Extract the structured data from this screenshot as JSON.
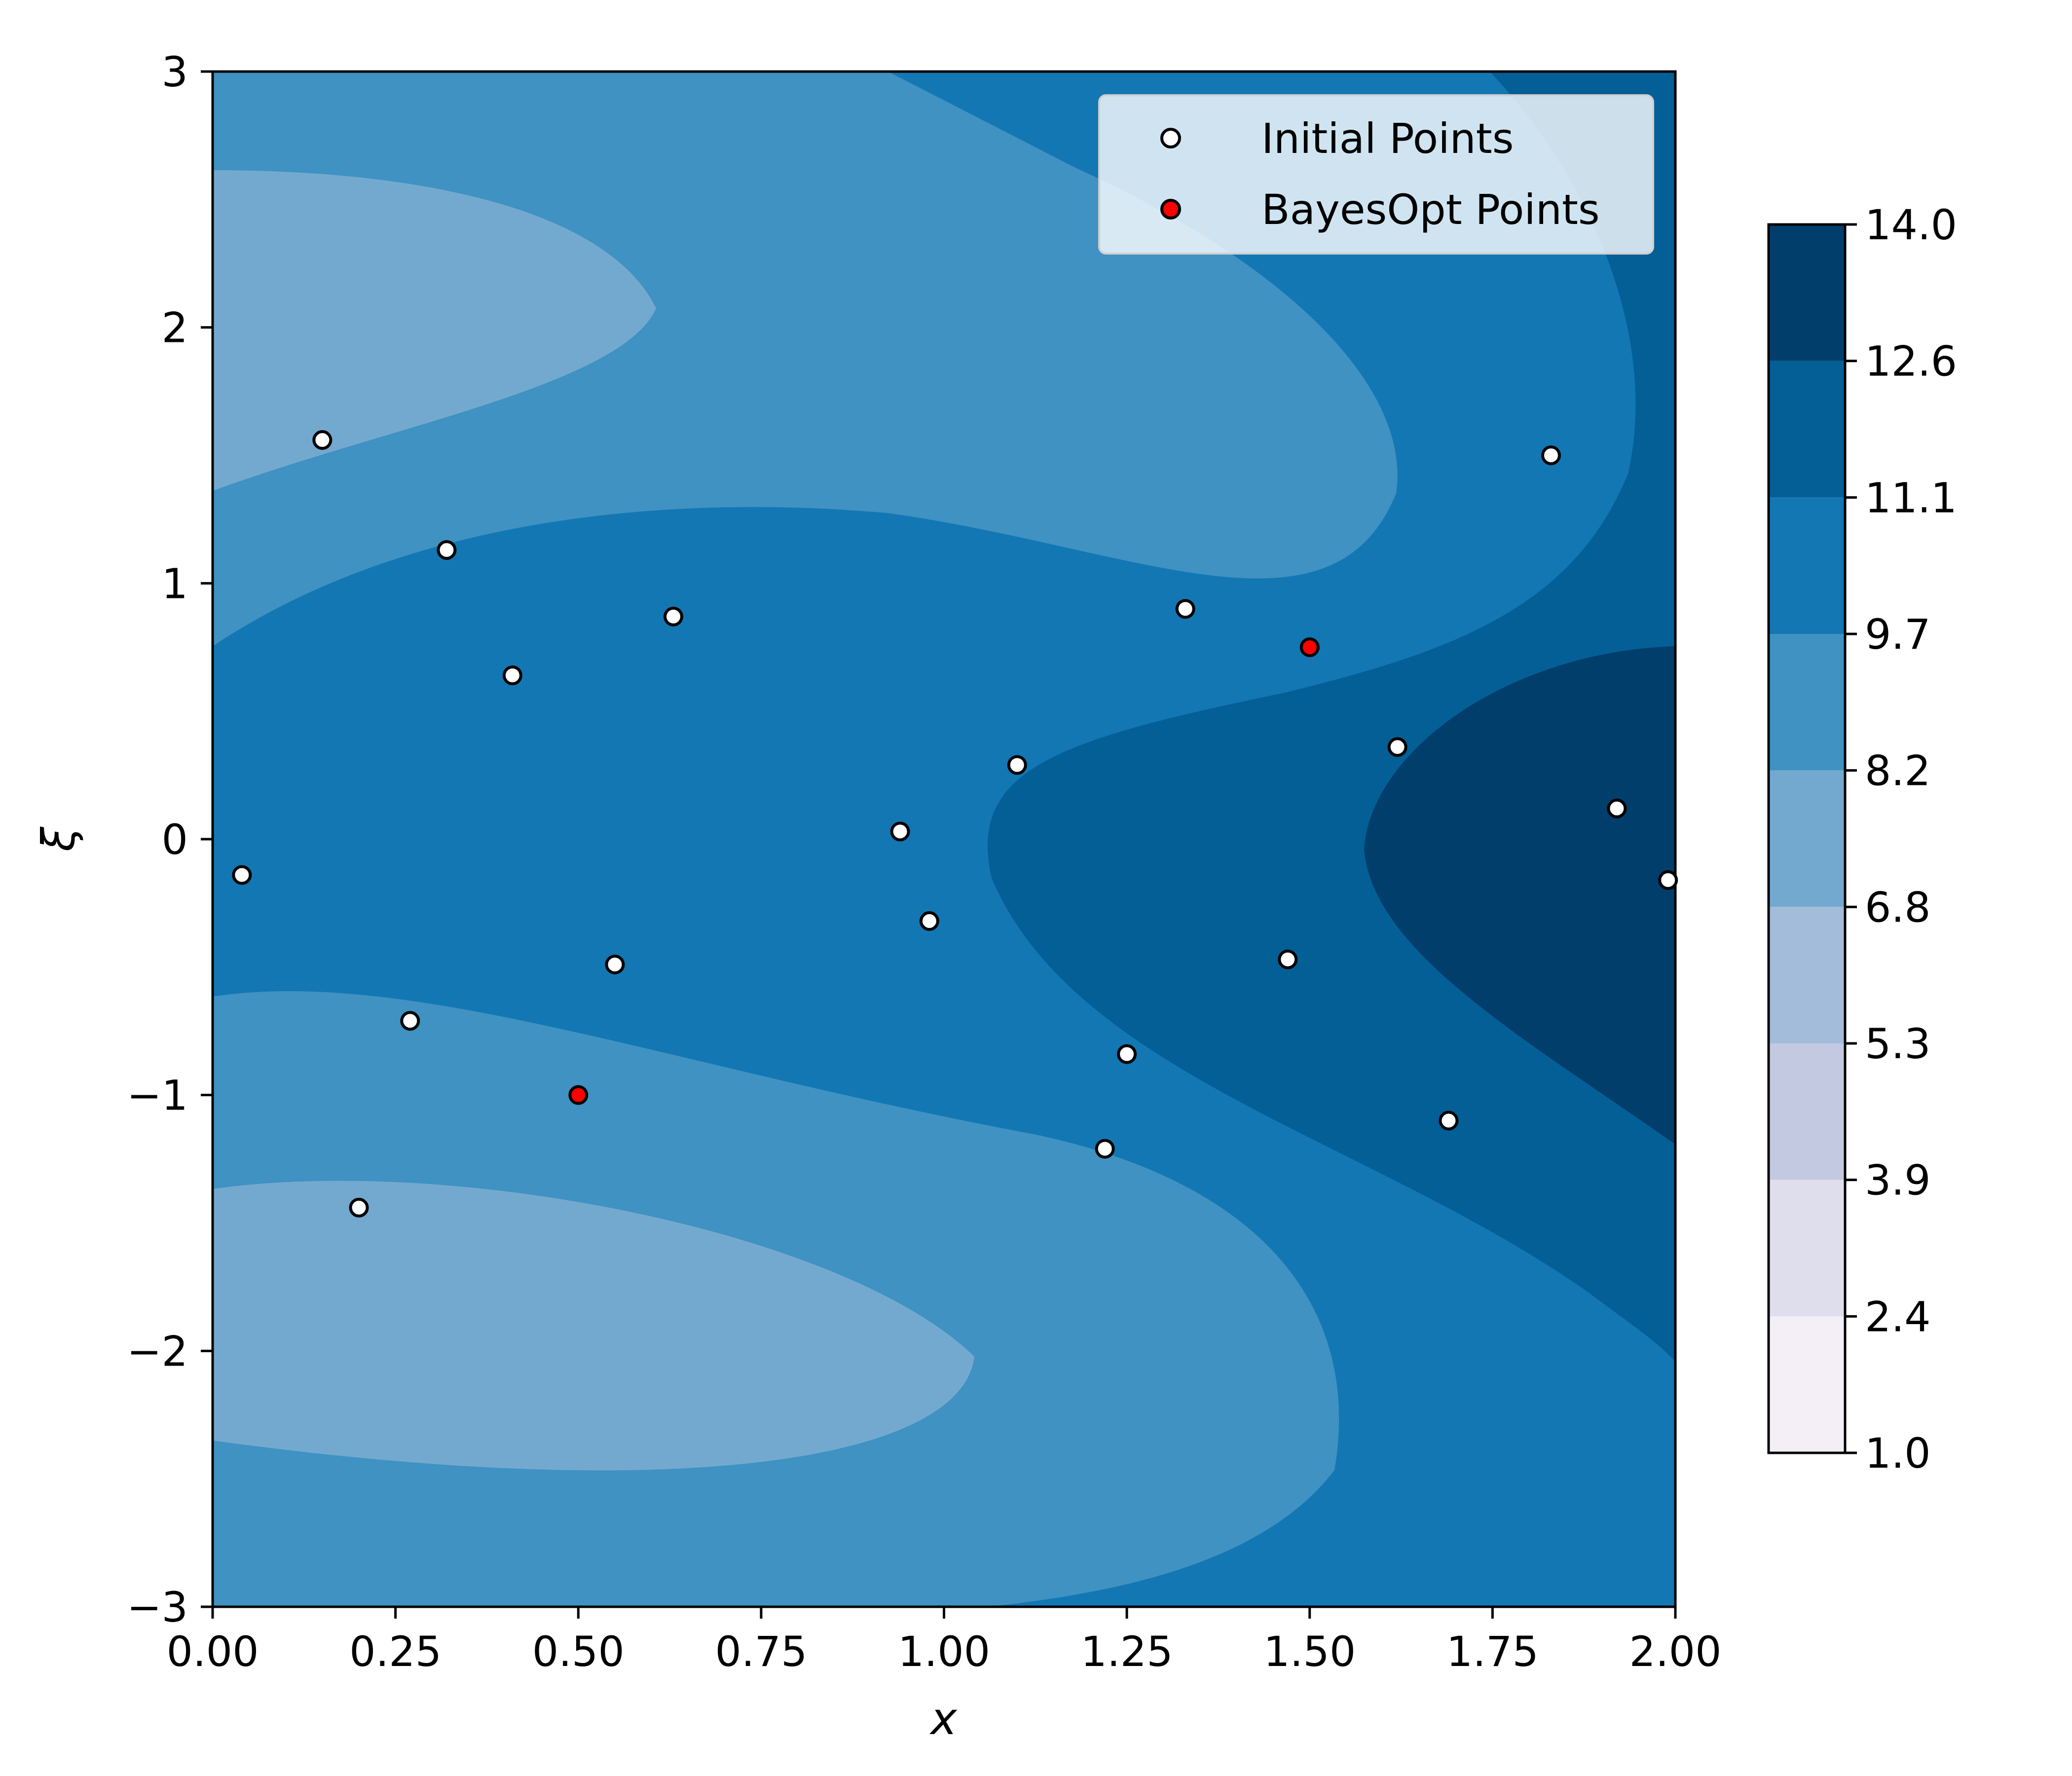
{
  "chart_data": {
    "type": "contour",
    "xlabel": "x",
    "ylabel": "ξ",
    "xlim": [
      0.0,
      2.0
    ],
    "ylim": [
      -3,
      3
    ],
    "xticks": [
      "0.00",
      "0.25",
      "0.50",
      "0.75",
      "1.00",
      "1.25",
      "1.50",
      "1.75",
      "2.00"
    ],
    "yticks": [
      "−3",
      "−2",
      "−1",
      "0",
      "1",
      "2",
      "3"
    ],
    "colorbar": {
      "range": [
        1.0,
        14.0
      ],
      "ticks": [
        "1.0",
        "2.4",
        "3.9",
        "5.3",
        "6.8",
        "8.2",
        "9.7",
        "11.1",
        "12.6",
        "14.0"
      ],
      "colors": [
        "#f4eff6",
        "#dfdeec",
        "#c4c9e2",
        "#a3bcda",
        "#74a9cf",
        "#3f92c2",
        "#1377b4",
        "#045f97",
        "#023e6b"
      ]
    },
    "series": [
      {
        "name": "Initial Points",
        "fill": "#ffffff",
        "points": [
          [
            0.04,
            -0.14
          ],
          [
            0.15,
            1.56
          ],
          [
            0.2,
            -1.44
          ],
          [
            0.27,
            -0.71
          ],
          [
            0.32,
            1.13
          ],
          [
            0.41,
            0.64
          ],
          [
            0.55,
            -0.49
          ],
          [
            0.63,
            0.87
          ],
          [
            0.94,
            0.03
          ],
          [
            0.98,
            -0.32
          ],
          [
            1.1,
            0.29
          ],
          [
            1.22,
            -1.21
          ],
          [
            1.25,
            -0.84
          ],
          [
            1.33,
            0.9
          ],
          [
            1.47,
            -0.47
          ],
          [
            1.62,
            0.36
          ],
          [
            1.69,
            -1.1
          ],
          [
            1.83,
            1.5
          ],
          [
            1.92,
            0.12
          ],
          [
            1.99,
            -0.16
          ]
        ]
      },
      {
        "name": "BayesOpt Points",
        "fill": "#ff0000",
        "points": [
          [
            0.5,
            -1.0
          ],
          [
            1.5,
            0.75
          ]
        ]
      }
    ],
    "legend_position": "top-right"
  }
}
